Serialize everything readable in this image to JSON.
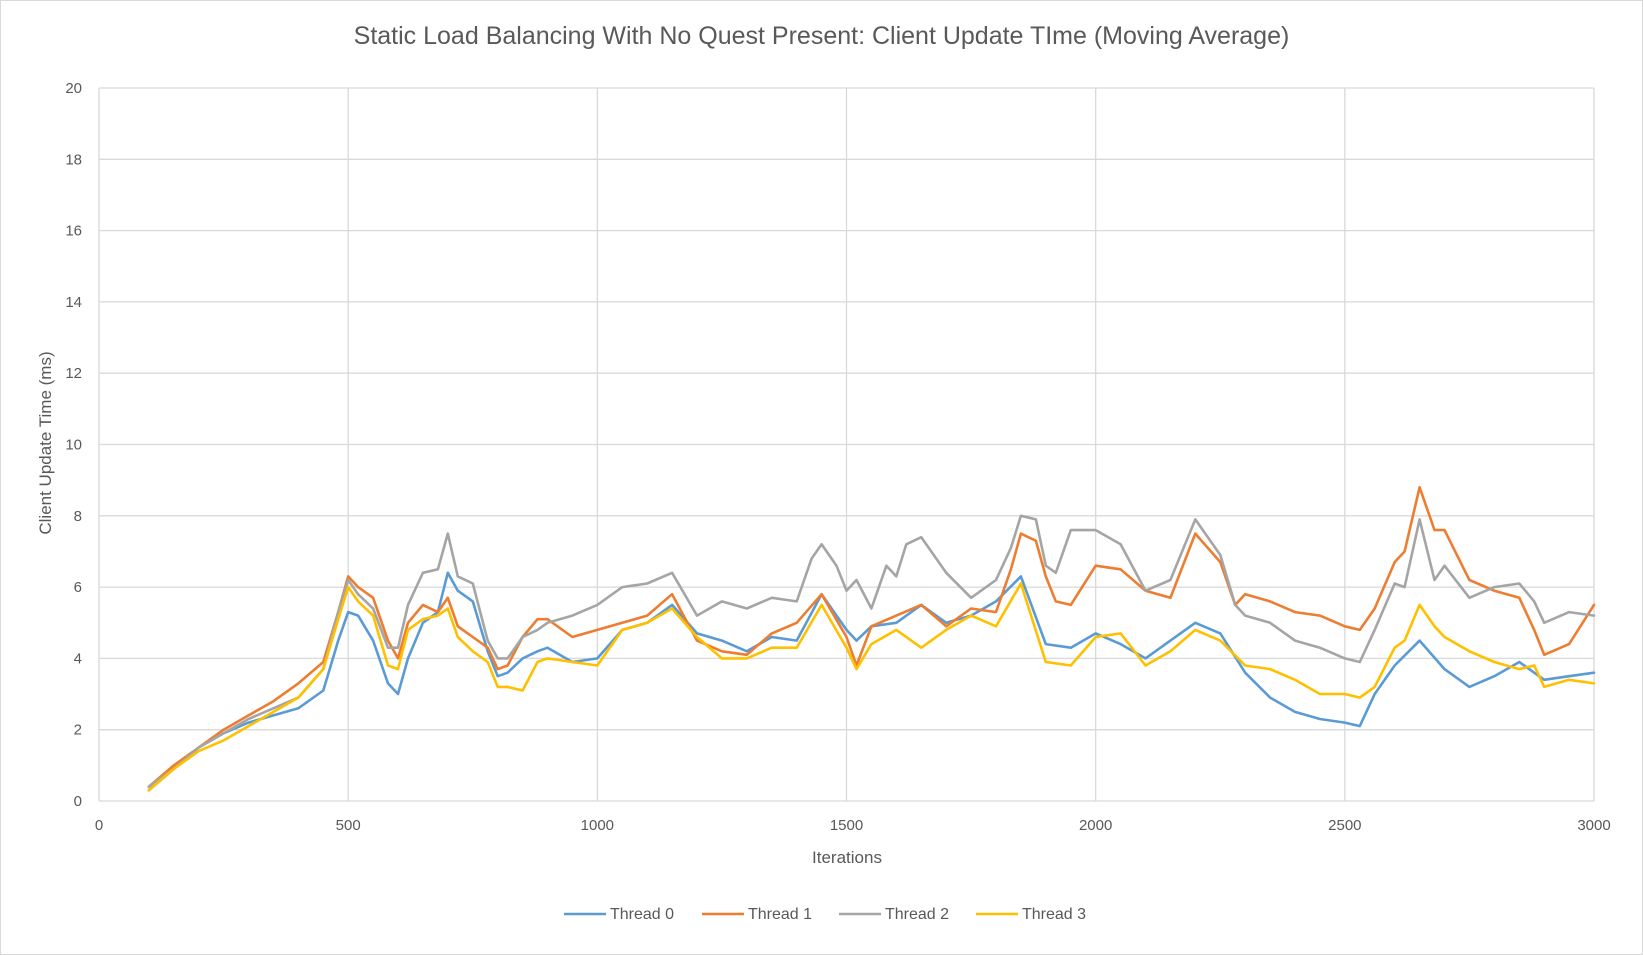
{
  "chart_data": {
    "type": "line",
    "title": "Static Load Balancing With No Quest Present: Client Update TIme (Moving Average)",
    "xlabel": "Iterations",
    "ylabel": "Client Update Time (ms)",
    "xlim": [
      0,
      3000
    ],
    "ylim": [
      0,
      20
    ],
    "xticks": [
      0,
      500,
      1000,
      1500,
      2000,
      2500,
      3000
    ],
    "yticks": [
      0,
      2,
      4,
      6,
      8,
      10,
      12,
      14,
      16,
      18,
      20
    ],
    "grid": true,
    "legend_position": "bottom",
    "series": [
      {
        "name": "Thread 0",
        "color": "#5b9bd5",
        "x": [
          100,
          150,
          200,
          250,
          300,
          350,
          400,
          450,
          480,
          500,
          520,
          550,
          580,
          600,
          620,
          650,
          680,
          700,
          720,
          750,
          780,
          800,
          820,
          850,
          880,
          900,
          950,
          1000,
          1050,
          1100,
          1150,
          1200,
          1250,
          1300,
          1350,
          1400,
          1450,
          1500,
          1520,
          1550,
          1600,
          1650,
          1700,
          1750,
          1800,
          1850,
          1900,
          1950,
          2000,
          2050,
          2100,
          2150,
          2200,
          2250,
          2300,
          2350,
          2400,
          2450,
          2500,
          2530,
          2560,
          2600,
          2650,
          2700,
          2750,
          2800,
          2850,
          2900,
          2950,
          3000
        ],
        "y": [
          0.3,
          0.9,
          1.5,
          1.9,
          2.2,
          2.4,
          2.6,
          3.1,
          4.5,
          5.3,
          5.2,
          4.5,
          3.3,
          3.0,
          4.0,
          5.0,
          5.3,
          6.4,
          5.9,
          5.6,
          4.2,
          3.5,
          3.6,
          4.0,
          4.2,
          4.3,
          3.9,
          4.0,
          4.8,
          5.0,
          5.5,
          4.7,
          4.5,
          4.2,
          4.6,
          4.5,
          5.8,
          4.8,
          4.5,
          4.9,
          5.0,
          5.5,
          5.0,
          5.2,
          5.6,
          6.3,
          4.4,
          4.3,
          4.7,
          4.4,
          4.0,
          4.5,
          5.0,
          4.7,
          3.6,
          2.9,
          2.5,
          2.3,
          2.2,
          2.1,
          3.0,
          3.8,
          4.5,
          3.7,
          3.2,
          3.5,
          3.9,
          3.4,
          3.5,
          3.6
        ]
      },
      {
        "name": "Thread 1",
        "color": "#ed7d31",
        "x": [
          100,
          150,
          200,
          250,
          300,
          350,
          400,
          450,
          480,
          500,
          520,
          550,
          580,
          600,
          620,
          650,
          680,
          700,
          720,
          750,
          780,
          800,
          820,
          850,
          880,
          900,
          950,
          1000,
          1050,
          1100,
          1150,
          1200,
          1250,
          1300,
          1350,
          1400,
          1450,
          1500,
          1520,
          1550,
          1600,
          1650,
          1700,
          1750,
          1800,
          1830,
          1850,
          1880,
          1900,
          1920,
          1950,
          2000,
          2050,
          2100,
          2150,
          2200,
          2250,
          2280,
          2300,
          2350,
          2400,
          2450,
          2500,
          2530,
          2560,
          2600,
          2620,
          2650,
          2680,
          2700,
          2750,
          2800,
          2850,
          2880,
          2900,
          2950,
          3000
        ],
        "y": [
          0.4,
          1.0,
          1.5,
          2.0,
          2.4,
          2.8,
          3.3,
          3.9,
          5.3,
          6.3,
          6.0,
          5.7,
          4.5,
          4.0,
          5.0,
          5.5,
          5.3,
          5.7,
          4.9,
          4.6,
          4.3,
          3.7,
          3.8,
          4.6,
          5.1,
          5.1,
          4.6,
          4.8,
          5.0,
          5.2,
          5.8,
          4.5,
          4.2,
          4.1,
          4.7,
          5.0,
          5.8,
          4.6,
          3.8,
          4.9,
          5.2,
          5.5,
          4.9,
          5.4,
          5.3,
          6.5,
          7.5,
          7.3,
          6.3,
          5.6,
          5.5,
          6.6,
          6.5,
          5.9,
          5.7,
          7.5,
          6.7,
          5.5,
          5.8,
          5.6,
          5.3,
          5.2,
          4.9,
          4.8,
          5.4,
          6.7,
          7.0,
          8.8,
          7.6,
          7.6,
          6.2,
          5.9,
          5.7,
          4.8,
          4.1,
          4.4,
          5.5
        ]
      },
      {
        "name": "Thread 2",
        "color": "#a5a5a5",
        "x": [
          100,
          150,
          200,
          250,
          300,
          350,
          400,
          450,
          480,
          500,
          520,
          550,
          580,
          600,
          620,
          650,
          680,
          700,
          720,
          750,
          780,
          800,
          820,
          850,
          880,
          900,
          950,
          1000,
          1050,
          1100,
          1150,
          1200,
          1250,
          1300,
          1350,
          1400,
          1430,
          1450,
          1480,
          1500,
          1520,
          1550,
          1580,
          1600,
          1620,
          1650,
          1700,
          1750,
          1800,
          1830,
          1850,
          1880,
          1900,
          1920,
          1950,
          2000,
          2050,
          2100,
          2150,
          2200,
          2250,
          2280,
          2300,
          2350,
          2400,
          2450,
          2500,
          2530,
          2560,
          2600,
          2620,
          2650,
          2680,
          2700,
          2750,
          2800,
          2850,
          2880,
          2900,
          2950,
          3000
        ],
        "y": [
          0.4,
          0.9,
          1.5,
          1.9,
          2.3,
          2.6,
          2.9,
          3.7,
          5.3,
          6.2,
          5.8,
          5.4,
          4.3,
          4.3,
          5.5,
          6.4,
          6.5,
          7.5,
          6.3,
          6.1,
          4.5,
          4.0,
          4.0,
          4.6,
          4.8,
          5.0,
          5.2,
          5.5,
          6.0,
          6.1,
          6.4,
          5.2,
          5.6,
          5.4,
          5.7,
          5.6,
          6.8,
          7.2,
          6.6,
          5.9,
          6.2,
          5.4,
          6.6,
          6.3,
          7.2,
          7.4,
          6.4,
          5.7,
          6.2,
          7.1,
          8.0,
          7.9,
          6.6,
          6.4,
          7.6,
          7.6,
          7.2,
          5.9,
          6.2,
          7.9,
          6.9,
          5.5,
          5.2,
          5.0,
          4.5,
          4.3,
          4.0,
          3.9,
          4.8,
          6.1,
          6.0,
          7.9,
          6.2,
          6.6,
          5.7,
          6.0,
          6.1,
          5.6,
          5.0,
          5.3,
          5.2
        ]
      },
      {
        "name": "Thread 3",
        "color": "#ffc000",
        "x": [
          100,
          150,
          200,
          250,
          300,
          350,
          400,
          450,
          480,
          500,
          520,
          550,
          580,
          600,
          620,
          650,
          680,
          700,
          720,
          750,
          780,
          800,
          820,
          850,
          880,
          900,
          950,
          1000,
          1050,
          1100,
          1150,
          1200,
          1250,
          1300,
          1350,
          1400,
          1450,
          1500,
          1520,
          1550,
          1600,
          1650,
          1700,
          1750,
          1800,
          1850,
          1900,
          1950,
          2000,
          2050,
          2100,
          2150,
          2200,
          2250,
          2300,
          2350,
          2400,
          2450,
          2500,
          2530,
          2560,
          2600,
          2620,
          2650,
          2680,
          2700,
          2750,
          2800,
          2850,
          2880,
          2900,
          2950,
          3000
        ],
        "y": [
          0.3,
          0.9,
          1.4,
          1.7,
          2.1,
          2.5,
          2.9,
          3.7,
          5.1,
          6.0,
          5.6,
          5.2,
          3.8,
          3.7,
          4.8,
          5.1,
          5.2,
          5.4,
          4.6,
          4.2,
          3.9,
          3.2,
          3.2,
          3.1,
          3.9,
          4.0,
          3.9,
          3.8,
          4.8,
          5.0,
          5.4,
          4.6,
          4.0,
          4.0,
          4.3,
          4.3,
          5.5,
          4.3,
          3.7,
          4.4,
          4.8,
          4.3,
          4.8,
          5.2,
          4.9,
          6.1,
          3.9,
          3.8,
          4.6,
          4.7,
          3.8,
          4.2,
          4.8,
          4.5,
          3.8,
          3.7,
          3.4,
          3.0,
          3.0,
          2.9,
          3.2,
          4.3,
          4.5,
          5.5,
          4.9,
          4.6,
          4.2,
          3.9,
          3.7,
          3.8,
          3.2,
          3.4,
          3.3
        ]
      }
    ]
  }
}
